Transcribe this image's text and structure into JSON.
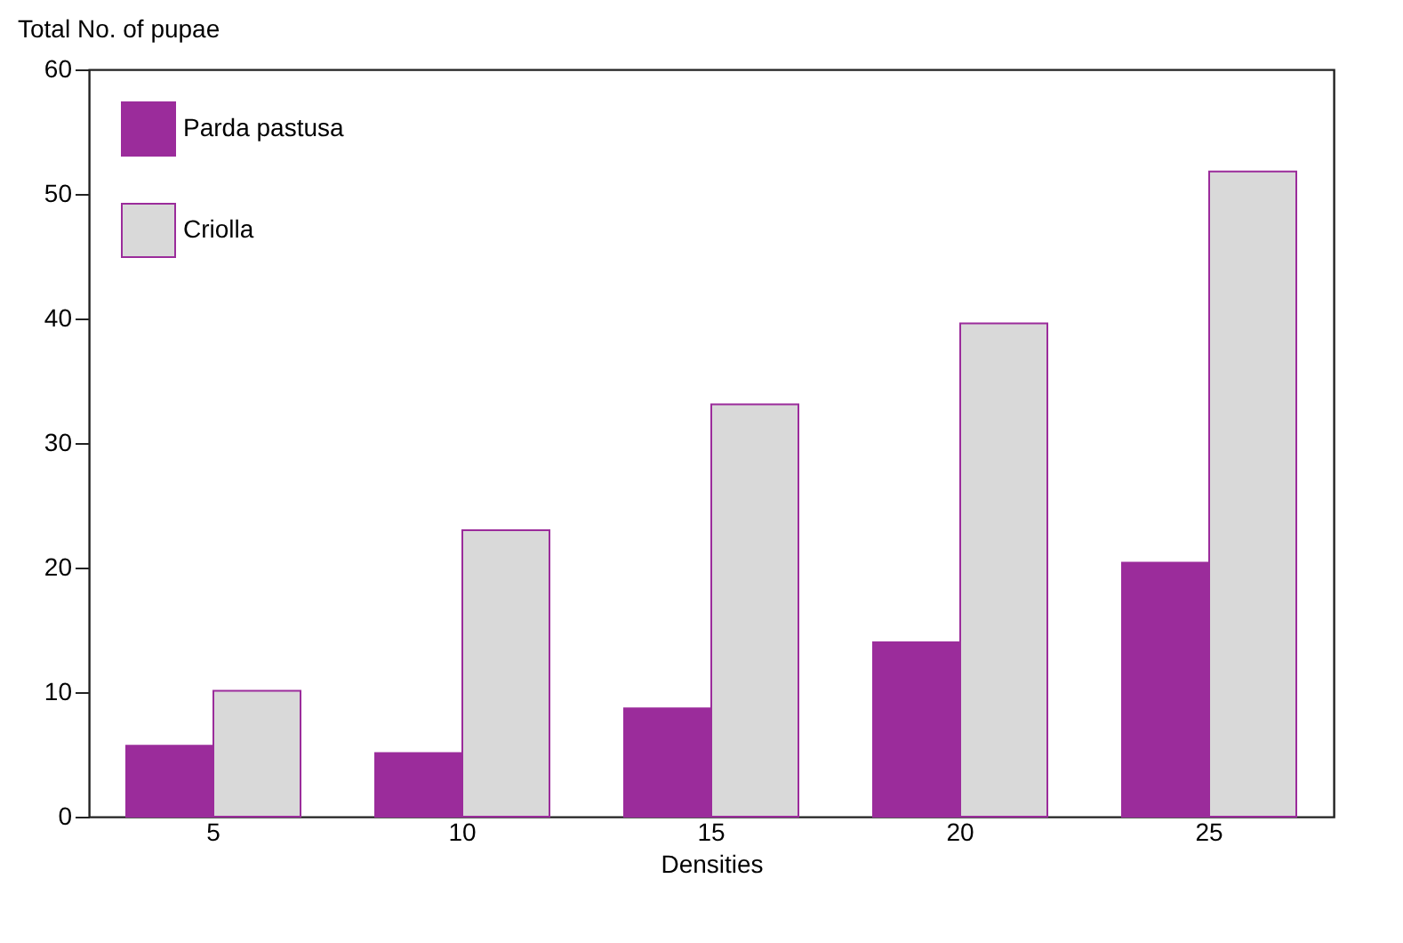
{
  "chart_data": {
    "type": "bar",
    "xlabel": "Densities",
    "ylabel": "Total No. of pupae",
    "categories": [
      "5",
      "10",
      "15",
      "20",
      "25"
    ],
    "series": [
      {
        "name": "Parda pastusa",
        "color": "#9b2c9b",
        "values": [
          5.7,
          5.1,
          8.7,
          14.0,
          20.4
        ]
      },
      {
        "name": "Criolla",
        "color": "#d9d9d9",
        "values": [
          10.1,
          23.0,
          33.1,
          39.6,
          51.8
        ]
      }
    ],
    "ylim": [
      0,
      60
    ],
    "yticks": [
      0,
      10,
      20,
      30,
      40,
      50,
      60
    ],
    "grid": false,
    "legend": "top left"
  }
}
